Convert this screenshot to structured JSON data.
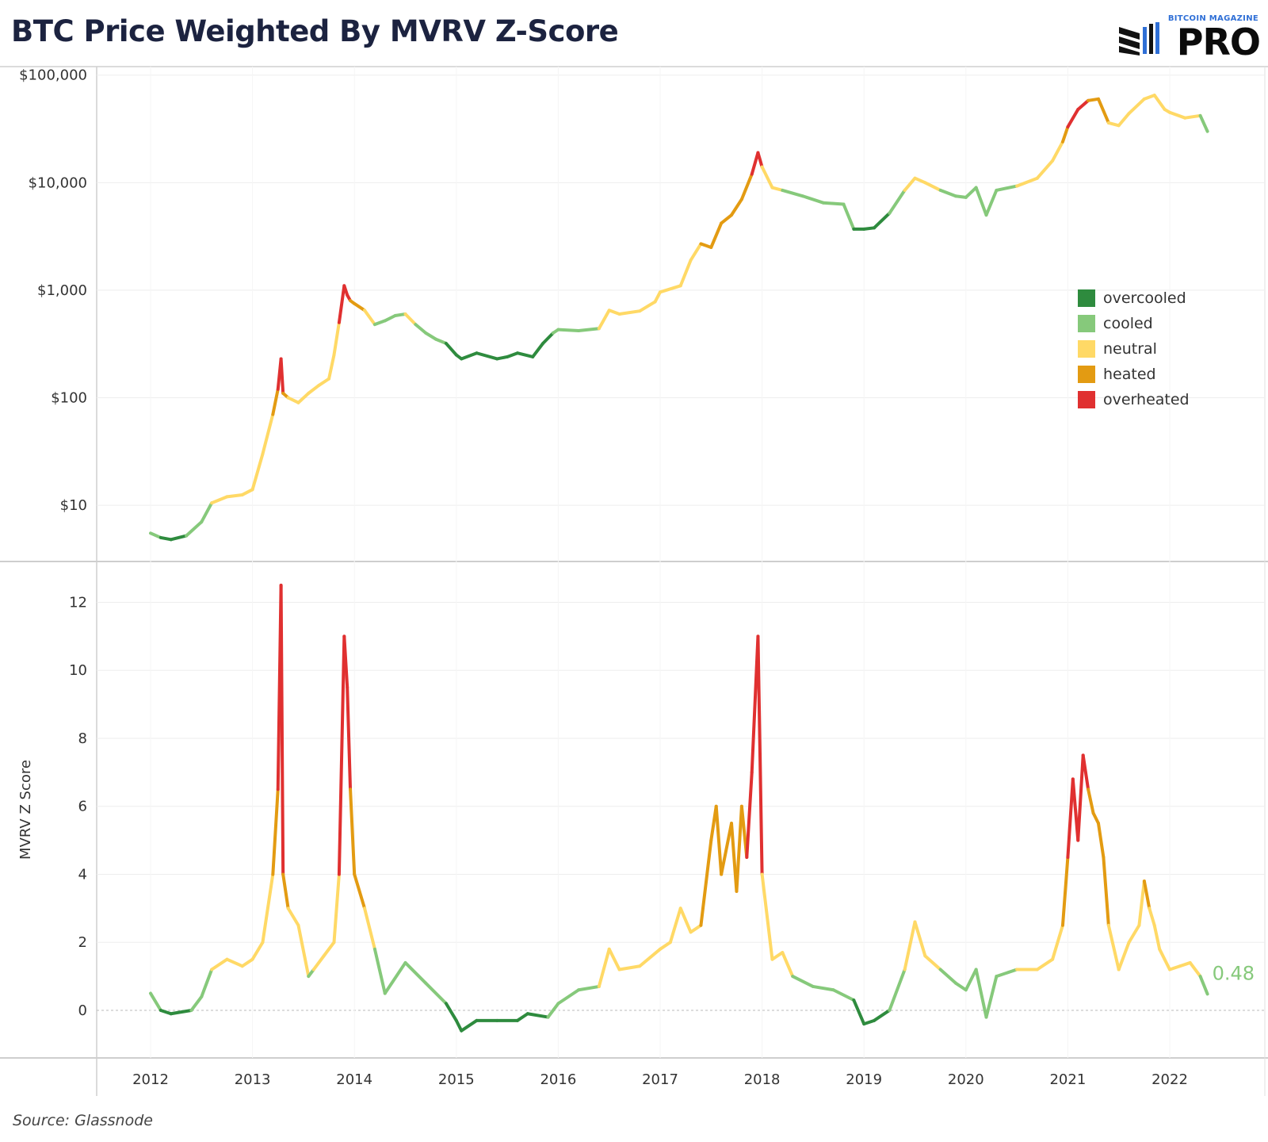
{
  "header": {
    "title": "BTC Price Weighted By MVRV Z-Score",
    "logo_small": "BITCOIN MAGAZINE",
    "logo_big": "PRO"
  },
  "footer": {
    "source": "Source: Glassnode"
  },
  "chart_data": [
    {
      "type": "line",
      "title": "",
      "xlabel": "",
      "ylabel": "",
      "yscale": "log",
      "ylim": [
        3,
        120000
      ],
      "yticks": [
        10,
        100,
        1000,
        10000,
        100000
      ],
      "ytick_labels": [
        "$10",
        "$100",
        "$1,000",
        "$10,000",
        "$100,000"
      ],
      "grid": true,
      "legend": {
        "placement": "right",
        "entries": [
          {
            "label": "overcooled",
            "color": "#2e8b3e"
          },
          {
            "label": "cooled",
            "color": "#86c97b"
          },
          {
            "label": "neutral",
            "color": "#ffd966"
          },
          {
            "label": "heated",
            "color": "#e39b12"
          },
          {
            "label": "overheated",
            "color": "#e03030"
          }
        ]
      },
      "series": [
        {
          "x": [
            2012.0,
            2012.1,
            2012.2,
            2012.35,
            2012.5,
            2012.6,
            2012.75,
            2012.9,
            2013.0,
            2013.1,
            2013.2,
            2013.25,
            2013.28,
            2013.3,
            2013.35,
            2013.45,
            2013.55,
            2013.65,
            2013.75,
            2013.8,
            2013.85,
            2013.9,
            2013.93,
            2013.96,
            2014.0,
            2014.1,
            2014.2,
            2014.3,
            2014.4,
            2014.5,
            2014.6,
            2014.7,
            2014.8,
            2014.9,
            2015.0,
            2015.05,
            2015.2,
            2015.4,
            2015.5,
            2015.6,
            2015.75,
            2015.85,
            2015.95,
            2016.0,
            2016.2,
            2016.4,
            2016.5,
            2016.6,
            2016.8,
            2016.95,
            2017.0,
            2017.2,
            2017.3,
            2017.4,
            2017.5,
            2017.6,
            2017.7,
            2017.8,
            2017.9,
            2017.96,
            2018.0,
            2018.1,
            2018.2,
            2018.4,
            2018.6,
            2018.8,
            2018.9,
            2019.0,
            2019.1,
            2019.25,
            2019.4,
            2019.5,
            2019.6,
            2019.75,
            2019.9,
            2020.0,
            2020.1,
            2020.2,
            2020.3,
            2020.5,
            2020.7,
            2020.85,
            2020.95,
            2021.0,
            2021.1,
            2021.2,
            2021.3,
            2021.4,
            2021.5,
            2021.6,
            2021.75,
            2021.85,
            2021.95,
            2022.0,
            2022.15,
            2022.3,
            2022.37
          ],
          "values": [
            5.5,
            5.0,
            4.8,
            5.2,
            7.0,
            10.5,
            12.0,
            12.5,
            14.0,
            30.0,
            70.0,
            120.0,
            230.0,
            110.0,
            100.0,
            90.0,
            110.0,
            130.0,
            150.0,
            250.0,
            500.0,
            1100.0,
            900.0,
            800.0,
            750.0,
            650.0,
            480.0,
            520.0,
            580.0,
            600.0,
            480.0,
            400.0,
            350.0,
            320.0,
            250.0,
            230.0,
            260.0,
            230.0,
            240.0,
            260.0,
            240.0,
            320.0,
            400.0,
            430.0,
            420.0,
            440.0,
            650.0,
            600.0,
            640.0,
            780.0,
            960.0,
            1100.0,
            1900.0,
            2700.0,
            2500.0,
            4200.0,
            5000.0,
            7000.0,
            12000.0,
            19000.0,
            14000.0,
            9000.0,
            8500.0,
            7500.0,
            6500.0,
            6300.0,
            3700.0,
            3700.0,
            3800.0,
            5200.0,
            8500.0,
            11000.0,
            10000.0,
            8500.0,
            7500.0,
            7300.0,
            9000.0,
            5000.0,
            8500.0,
            9300.0,
            11000.0,
            16000.0,
            24000.0,
            33000.0,
            48000.0,
            58000.0,
            60000.0,
            36000.0,
            34000.0,
            44000.0,
            60000.0,
            65000.0,
            48000.0,
            45000.0,
            40000.0,
            42000.0,
            30000.0
          ]
        }
      ]
    },
    {
      "type": "line",
      "title": "",
      "xlabel": "",
      "ylabel": "MVRV Z Score",
      "ylim": [
        -1.4,
        13.2
      ],
      "yticks": [
        0,
        2,
        4,
        6,
        8,
        10,
        12
      ],
      "xticks": [
        2012,
        2013,
        2014,
        2015,
        2016,
        2017,
        2018,
        2019,
        2020,
        2021,
        2022
      ],
      "grid": true,
      "last_value_label": "0.48",
      "series": [
        {
          "x": [
            2012.0,
            2012.1,
            2012.2,
            2012.4,
            2012.5,
            2012.6,
            2012.75,
            2012.9,
            2013.0,
            2013.1,
            2013.2,
            2013.25,
            2013.28,
            2013.3,
            2013.35,
            2013.45,
            2013.55,
            2013.6,
            2013.7,
            2013.8,
            2013.85,
            2013.9,
            2013.93,
            2013.96,
            2014.0,
            2014.1,
            2014.2,
            2014.3,
            2014.5,
            2014.7,
            2014.9,
            2015.0,
            2015.05,
            2015.2,
            2015.4,
            2015.6,
            2015.7,
            2015.9,
            2016.0,
            2016.2,
            2016.4,
            2016.5,
            2016.6,
            2016.8,
            2017.0,
            2017.1,
            2017.2,
            2017.3,
            2017.4,
            2017.5,
            2017.55,
            2017.6,
            2017.7,
            2017.75,
            2017.8,
            2017.85,
            2017.9,
            2017.96,
            2018.0,
            2018.1,
            2018.2,
            2018.3,
            2018.5,
            2018.7,
            2018.9,
            2019.0,
            2019.1,
            2019.25,
            2019.4,
            2019.5,
            2019.6,
            2019.75,
            2019.9,
            2020.0,
            2020.1,
            2020.2,
            2020.3,
            2020.5,
            2020.7,
            2020.85,
            2020.95,
            2021.0,
            2021.05,
            2021.1,
            2021.15,
            2021.2,
            2021.25,
            2021.3,
            2021.35,
            2021.4,
            2021.5,
            2021.6,
            2021.7,
            2021.75,
            2021.8,
            2021.85,
            2021.9,
            2022.0,
            2022.1,
            2022.2,
            2022.3,
            2022.37
          ],
          "values": [
            0.5,
            0.0,
            -0.1,
            0.0,
            0.4,
            1.2,
            1.5,
            1.3,
            1.5,
            2.0,
            4.0,
            6.5,
            12.5,
            4.0,
            3.0,
            2.5,
            1.0,
            1.2,
            1.6,
            2.0,
            4.0,
            11.0,
            9.5,
            6.5,
            4.0,
            3.0,
            1.8,
            0.5,
            1.4,
            0.8,
            0.2,
            -0.3,
            -0.6,
            -0.3,
            -0.3,
            -0.3,
            -0.1,
            -0.2,
            0.2,
            0.6,
            0.7,
            1.8,
            1.2,
            1.3,
            1.8,
            2.0,
            3.0,
            2.3,
            2.5,
            5.0,
            6.0,
            4.0,
            5.5,
            3.5,
            6.0,
            4.5,
            7.0,
            11.0,
            4.0,
            1.5,
            1.7,
            1.0,
            0.7,
            0.6,
            0.3,
            -0.4,
            -0.3,
            0.0,
            1.2,
            2.6,
            1.6,
            1.2,
            0.8,
            0.6,
            1.2,
            -0.2,
            1.0,
            1.2,
            1.2,
            1.5,
            2.5,
            4.5,
            6.8,
            5.0,
            7.5,
            6.5,
            5.8,
            5.5,
            4.5,
            2.5,
            1.2,
            2.0,
            2.5,
            3.8,
            3.0,
            2.5,
            1.8,
            1.2,
            1.3,
            1.4,
            1.0,
            0.48
          ]
        }
      ]
    }
  ]
}
